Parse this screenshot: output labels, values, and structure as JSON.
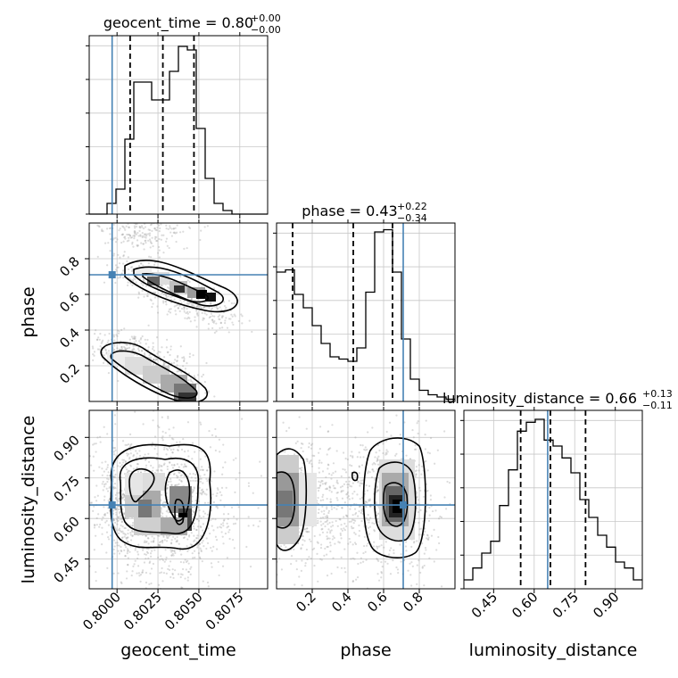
{
  "titles": {
    "geocent_time": {
      "base": "geocent_time = 0.80",
      "sup": "+0.00",
      "sub": "−0.00"
    },
    "phase": {
      "base": "phase = 0.43",
      "sup": "+0.22",
      "sub": "−0.34"
    },
    "luminosity_distance": {
      "base": "luminosity_distance = 0.66",
      "sup": "+0.13",
      "sub": "−0.11"
    }
  },
  "axis_labels": {
    "geocent_time": "geocent_time",
    "phase": "phase",
    "luminosity_distance": "luminosity_distance"
  },
  "colors": {
    "truth": "#4682b4",
    "hist": "#000000",
    "grid": "#c8c8c8",
    "scatter": "#9a9a9a"
  },
  "chart_data": {
    "type": "corner",
    "parameters": [
      "geocent_time",
      "phase",
      "luminosity_distance"
    ],
    "truths": {
      "geocent_time": 0.7997,
      "phase": 0.71,
      "luminosity_distance": 0.65
    },
    "ranges": {
      "geocent_time": [
        0.7983,
        0.8092
      ],
      "phase": [
        0.0,
        1.0
      ],
      "luminosity_distance": [
        0.34,
        1.0
      ]
    },
    "ticks": {
      "geocent_time": [
        "0.8000",
        "0.8025",
        "0.8050",
        "0.8075"
      ],
      "phase": [
        "0.2",
        "0.4",
        "0.6",
        "0.8"
      ],
      "luminosity_distance": [
        "0.45",
        "0.60",
        "0.75",
        "0.90"
      ]
    },
    "histograms": {
      "geocent_time": {
        "range": [
          0.7983,
          0.8092
        ],
        "counts": [
          0,
          0,
          3,
          7,
          21,
          37,
          37,
          32,
          32,
          40,
          47,
          46,
          24,
          10,
          3,
          1,
          0,
          0,
          0,
          0
        ],
        "quantiles": [
          0.8008,
          0.8028,
          0.8047
        ],
        "ylim": [
          0,
          50
        ]
      },
      "phase": {
        "range": [
          0.0,
          1.0
        ],
        "counts": [
          58,
          59,
          48,
          42,
          34,
          26,
          20,
          19,
          18,
          24,
          49,
          76,
          77,
          58,
          28,
          10,
          5,
          3,
          2,
          1
        ],
        "quantiles": [
          0.09,
          0.43,
          0.65
        ],
        "ylim": [
          0,
          80
        ]
      },
      "luminosity_distance": {
        "range": [
          0.34,
          1.0
        ],
        "counts": [
          3,
          7,
          12,
          16,
          28,
          40,
          53,
          56,
          57,
          50,
          48,
          44,
          39,
          30,
          24,
          18,
          14,
          9,
          7,
          3
        ],
        "quantiles": [
          0.55,
          0.66,
          0.79
        ],
        "ylim": [
          0,
          60
        ]
      }
    },
    "contour_levels": [
      0.12,
      0.25,
      0.5,
      0.75
    ]
  }
}
